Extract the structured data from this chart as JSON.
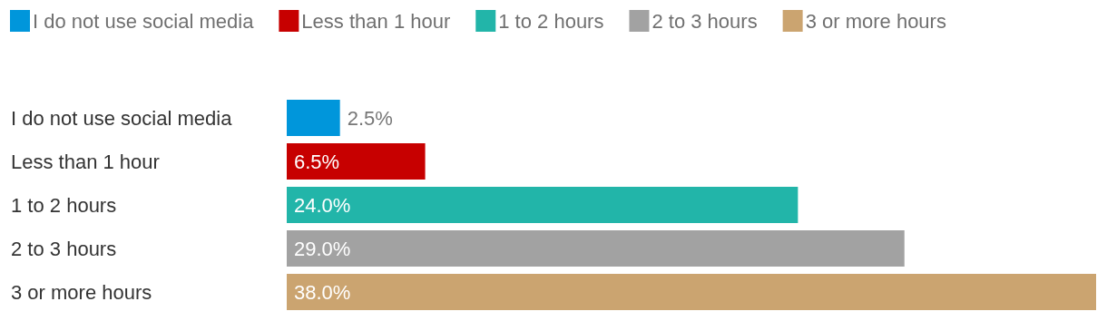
{
  "chart_data": {
    "type": "bar",
    "orientation": "horizontal",
    "legend": "top left",
    "categories": [
      "I do not use social media",
      "Less than 1 hour",
      "1 to 2 hours",
      "2 to 3 hours",
      "3 or more hours"
    ],
    "series": [
      {
        "name": "I do not use social media",
        "color": "#0096db",
        "values": [
          2.5,
          null,
          null,
          null,
          null
        ],
        "value_labels": [
          "2.5%",
          null,
          null,
          null,
          null
        ]
      },
      {
        "name": "Less than 1 hour",
        "color": "#c70000",
        "values": [
          null,
          6.5,
          null,
          null,
          null
        ],
        "value_labels": [
          null,
          "6.5%",
          null,
          null,
          null
        ]
      },
      {
        "name": "1 to 2 hours",
        "color": "#22b5a9",
        "values": [
          null,
          null,
          24.0,
          null,
          null
        ],
        "value_labels": [
          null,
          null,
          "24.0%",
          null,
          null
        ]
      },
      {
        "name": "2 to 3 hours",
        "color": "#a2a2a2",
        "values": [
          null,
          null,
          null,
          29.0,
          null
        ],
        "value_labels": [
          null,
          null,
          null,
          "29.0%",
          null
        ]
      },
      {
        "name": "3 or more hours",
        "color": "#cba470",
        "values": [
          null,
          null,
          null,
          null,
          38.0
        ],
        "value_labels": [
          null,
          null,
          null,
          null,
          "38.0%"
        ]
      }
    ]
  }
}
